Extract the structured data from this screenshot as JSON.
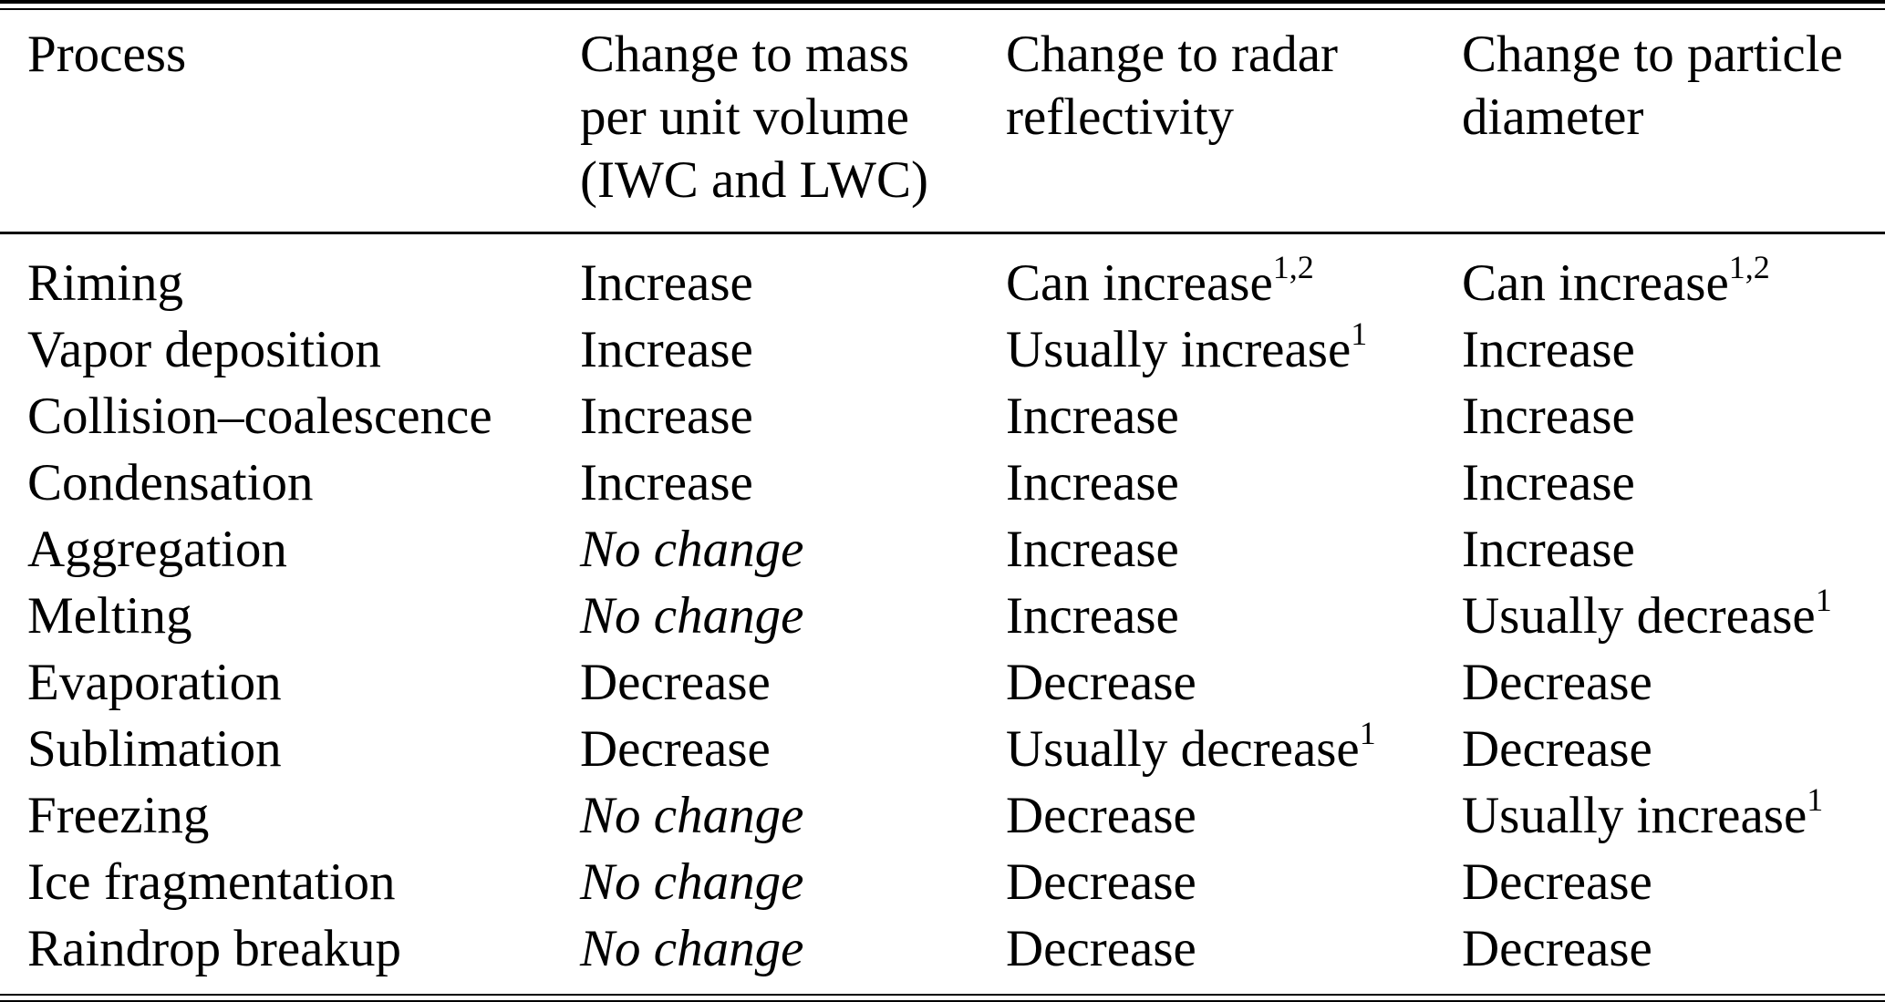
{
  "colors": {
    "text": "#000000",
    "rule": "#000000",
    "background": "#ffffff"
  },
  "table": {
    "columns": [
      "Process",
      "Change to mass\nper unit volume\n(IWC and LWC)",
      "Change to radar\nreflectivity",
      "Change to particle\ndiameter"
    ],
    "rows": [
      {
        "process": "Riming",
        "mass": {
          "text": "Increase",
          "italic": false,
          "sup": ""
        },
        "radar": {
          "text": "Can increase",
          "italic": false,
          "sup": "1,2"
        },
        "diameter": {
          "text": "Can increase",
          "italic": false,
          "sup": "1,2"
        }
      },
      {
        "process": "Vapor deposition",
        "mass": {
          "text": "Increase",
          "italic": false,
          "sup": ""
        },
        "radar": {
          "text": "Usually increase",
          "italic": false,
          "sup": "1"
        },
        "diameter": {
          "text": "Increase",
          "italic": false,
          "sup": ""
        }
      },
      {
        "process": "Collision–coalescence",
        "mass": {
          "text": "Increase",
          "italic": false,
          "sup": ""
        },
        "radar": {
          "text": "Increase",
          "italic": false,
          "sup": ""
        },
        "diameter": {
          "text": "Increase",
          "italic": false,
          "sup": ""
        }
      },
      {
        "process": "Condensation",
        "mass": {
          "text": "Increase",
          "italic": false,
          "sup": ""
        },
        "radar": {
          "text": "Increase",
          "italic": false,
          "sup": ""
        },
        "diameter": {
          "text": "Increase",
          "italic": false,
          "sup": ""
        }
      },
      {
        "process": "Aggregation",
        "mass": {
          "text": "No change",
          "italic": true,
          "sup": ""
        },
        "radar": {
          "text": "Increase",
          "italic": false,
          "sup": ""
        },
        "diameter": {
          "text": "Increase",
          "italic": false,
          "sup": ""
        }
      },
      {
        "process": "Melting",
        "mass": {
          "text": "No change",
          "italic": true,
          "sup": ""
        },
        "radar": {
          "text": "Increase",
          "italic": false,
          "sup": ""
        },
        "diameter": {
          "text": "Usually decrease",
          "italic": false,
          "sup": "1"
        }
      },
      {
        "process": "Evaporation",
        "mass": {
          "text": "Decrease",
          "italic": false,
          "sup": ""
        },
        "radar": {
          "text": "Decrease",
          "italic": false,
          "sup": ""
        },
        "diameter": {
          "text": "Decrease",
          "italic": false,
          "sup": ""
        }
      },
      {
        "process": "Sublimation",
        "mass": {
          "text": "Decrease",
          "italic": false,
          "sup": ""
        },
        "radar": {
          "text": "Usually decrease",
          "italic": false,
          "sup": "1"
        },
        "diameter": {
          "text": "Decrease",
          "italic": false,
          "sup": ""
        }
      },
      {
        "process": "Freezing",
        "mass": {
          "text": "No change",
          "italic": true,
          "sup": ""
        },
        "radar": {
          "text": "Decrease",
          "italic": false,
          "sup": ""
        },
        "diameter": {
          "text": "Usually increase",
          "italic": false,
          "sup": "1"
        }
      },
      {
        "process": "Ice fragmentation",
        "mass": {
          "text": "No change",
          "italic": true,
          "sup": ""
        },
        "radar": {
          "text": "Decrease",
          "italic": false,
          "sup": ""
        },
        "diameter": {
          "text": "Decrease",
          "italic": false,
          "sup": ""
        }
      },
      {
        "process": "Raindrop breakup",
        "mass": {
          "text": "No change",
          "italic": true,
          "sup": ""
        },
        "radar": {
          "text": "Decrease",
          "italic": false,
          "sup": ""
        },
        "diameter": {
          "text": "Decrease",
          "italic": false,
          "sup": ""
        }
      }
    ]
  }
}
